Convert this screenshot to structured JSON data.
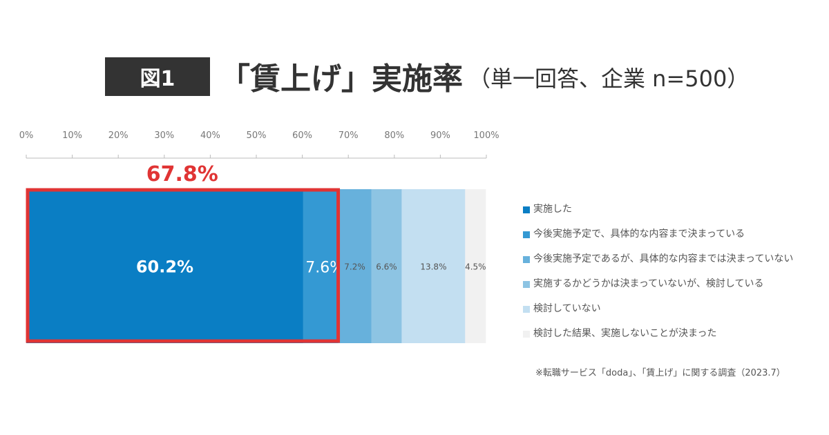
{
  "title": {
    "badge": "図1",
    "main": "「賃上げ」実施率",
    "sub": "（単一回答、企業 n=500）"
  },
  "chart_data": {
    "type": "stacked-bar-horizontal",
    "xlim": [
      0,
      100
    ],
    "x_ticks": [
      "0%",
      "10%",
      "20%",
      "30%",
      "40%",
      "50%",
      "60%",
      "70%",
      "80%",
      "90%",
      "100%"
    ],
    "legend_position": "right",
    "series": [
      {
        "name": "実施した",
        "value": 60.2,
        "label": "60.2%",
        "color": "#0a7ec4"
      },
      {
        "name": "今後実施予定で、具体的な内容まで決まっている",
        "value": 7.6,
        "label": "7.6%",
        "color": "#3499d3"
      },
      {
        "name": "今後実施予定であるが、具体的な内容までは決まっていない",
        "value": 7.2,
        "label": "7.2%",
        "color": "#67b1dc"
      },
      {
        "name": "実施するかどうかは決まっていないが、検討している",
        "value": 6.6,
        "label": "6.6%",
        "color": "#8dc4e3"
      },
      {
        "name": "検討していない",
        "value": 13.8,
        "label": "13.8%",
        "color": "#c3dff1"
      },
      {
        "name": "検討した結果、実施しないことが決まった",
        "value": 4.5,
        "label": "4.5%",
        "color": "#f1f1f1"
      }
    ],
    "highlight": {
      "label": "67.8%",
      "value": 67.8,
      "color": "#e03434"
    }
  },
  "source": "※転職サービス「doda」、「賃上げ」に関する調査（2023.7）"
}
